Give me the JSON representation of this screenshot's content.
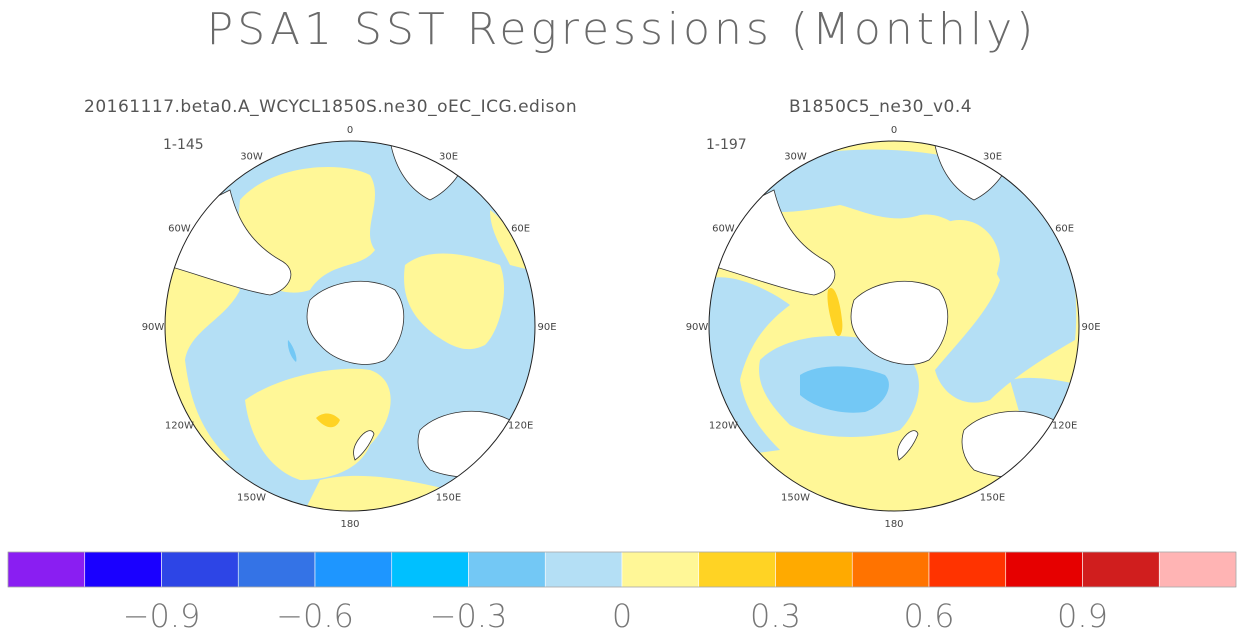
{
  "title": "PSA1 SST Regressions (Monthly)",
  "chart_data": [
    {
      "type": "polar-contour-map",
      "title": "20161117.beta0.A_WCYCL1850S.ne30_oEC_ICG.edison",
      "year_range": "1-145",
      "longitude_labels": [
        "0",
        "30E",
        "60E",
        "90E",
        "120E",
        "150E",
        "180",
        "150W",
        "120W",
        "90W",
        "60W",
        "30W"
      ]
    },
    {
      "type": "polar-contour-map",
      "title": "B1850C5_ne30_v0.4",
      "year_range": "1-197",
      "longitude_labels": [
        "0",
        "30E",
        "60E",
        "90E",
        "120E",
        "150E",
        "180",
        "150W",
        "120W",
        "90W",
        "60W",
        "30W"
      ]
    }
  ],
  "colorbar": {
    "colors": [
      "#8a1ef2",
      "#1a00ff",
      "#2d45e6",
      "#3473e6",
      "#1e96ff",
      "#00c0ff",
      "#73c8f5",
      "#b4dff5",
      "#fff797",
      "#ffd324",
      "#ffaa00",
      "#ff7300",
      "#ff3300",
      "#e60000",
      "#d01e1e",
      "#ffb4b4"
    ],
    "labels": [
      "−0.9",
      "−0.6",
      "−0.3",
      "0",
      "0.3",
      "0.6",
      "0.9"
    ]
  }
}
